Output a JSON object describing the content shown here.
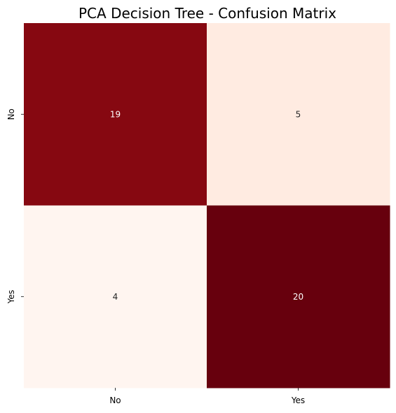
{
  "chart_data": {
    "type": "heatmap",
    "title": "PCA Decision Tree - Confusion Matrix",
    "xlabel": "",
    "ylabel": "",
    "x_categories": [
      "No",
      "Yes"
    ],
    "y_categories": [
      "No",
      "Yes"
    ],
    "values": [
      [
        19,
        5
      ],
      [
        4,
        20
      ]
    ],
    "colormap": "Reds",
    "colorbar": false,
    "grid": false,
    "colors": {
      "low": "#fff5f0",
      "high": "#67000d",
      "text_dark": "#262626",
      "text_light": "#ffffff"
    }
  }
}
